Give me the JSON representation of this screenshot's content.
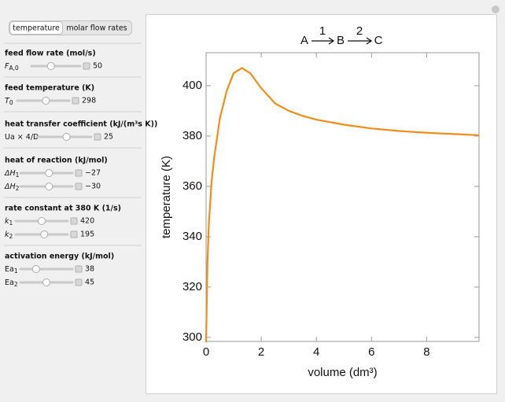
{
  "tabs": [
    "temperature",
    "molar flow rates"
  ],
  "controls": [
    {
      "heading": "feed flow rate (mol/s)",
      "items": [
        {
          "label": {
            "base": "F",
            "sub": "A,0"
          },
          "italic": true,
          "value": "50"
        }
      ]
    },
    {
      "heading": "feed temperature (K)",
      "items": [
        {
          "label": {
            "base": "T",
            "sub": "0"
          },
          "italic": true,
          "value": "298"
        }
      ]
    },
    {
      "heading": "heat transfer coefficient (kJ/(m³s K))",
      "items": [
        {
          "label": {
            "base": "Ua × 4/D"
          },
          "italic": false,
          "value": "25"
        }
      ]
    },
    {
      "heading": "heat of reaction (kJ/mol)",
      "items": [
        {
          "label": {
            "base": "ΔH",
            "sub": "1"
          },
          "italic": true,
          "value": "−27"
        },
        {
          "label": {
            "base": "ΔH",
            "sub": "2"
          },
          "italic": true,
          "value": "−30"
        }
      ]
    },
    {
      "heading": "rate constant at 380 K (1/s)",
      "items": [
        {
          "label": {
            "base": "k",
            "sub": "1"
          },
          "italic": true,
          "value": "420"
        },
        {
          "label": {
            "base": "k",
            "sub": "2"
          },
          "italic": true,
          "value": "195"
        }
      ]
    },
    {
      "heading": "activation energy (kJ/mol)",
      "items": [
        {
          "label": {
            "base": "Ea",
            "sub": "1"
          },
          "italic": false,
          "value": "38"
        },
        {
          "label": {
            "base": "Ea",
            "sub": "2"
          },
          "italic": false,
          "value": "45"
        }
      ]
    }
  ],
  "chart_data": {
    "type": "line",
    "title": {
      "species": [
        "A",
        "B",
        "C"
      ],
      "steps": [
        "1",
        "2"
      ]
    },
    "x_label": "volume (dm³)",
    "y_label": "temperature (K)",
    "x": [
      0,
      0.05,
      0.1,
      0.2,
      0.3,
      0.5,
      0.75,
      1.0,
      1.3,
      1.6,
      2.0,
      2.5,
      3.0,
      3.5,
      4.0,
      5.0,
      6.0,
      7.0,
      8.0,
      9.0,
      9.9
    ],
    "series": [
      {
        "name": "temperature",
        "color": "#f28c1a",
        "values": [
          298,
          330,
          345,
          362,
          372,
          387,
          398,
          405,
          407,
          405,
          399,
          393,
          390,
          388,
          386.5,
          384.5,
          383,
          382,
          381.3,
          380.8,
          380.3
        ]
      }
    ],
    "xlim": [
      0,
      9.9
    ],
    "ylim": [
      298.4,
      413.1
    ],
    "xticks": [
      0,
      2,
      4,
      6,
      8
    ],
    "yticks": [
      300,
      320,
      340,
      360,
      380,
      400
    ]
  }
}
